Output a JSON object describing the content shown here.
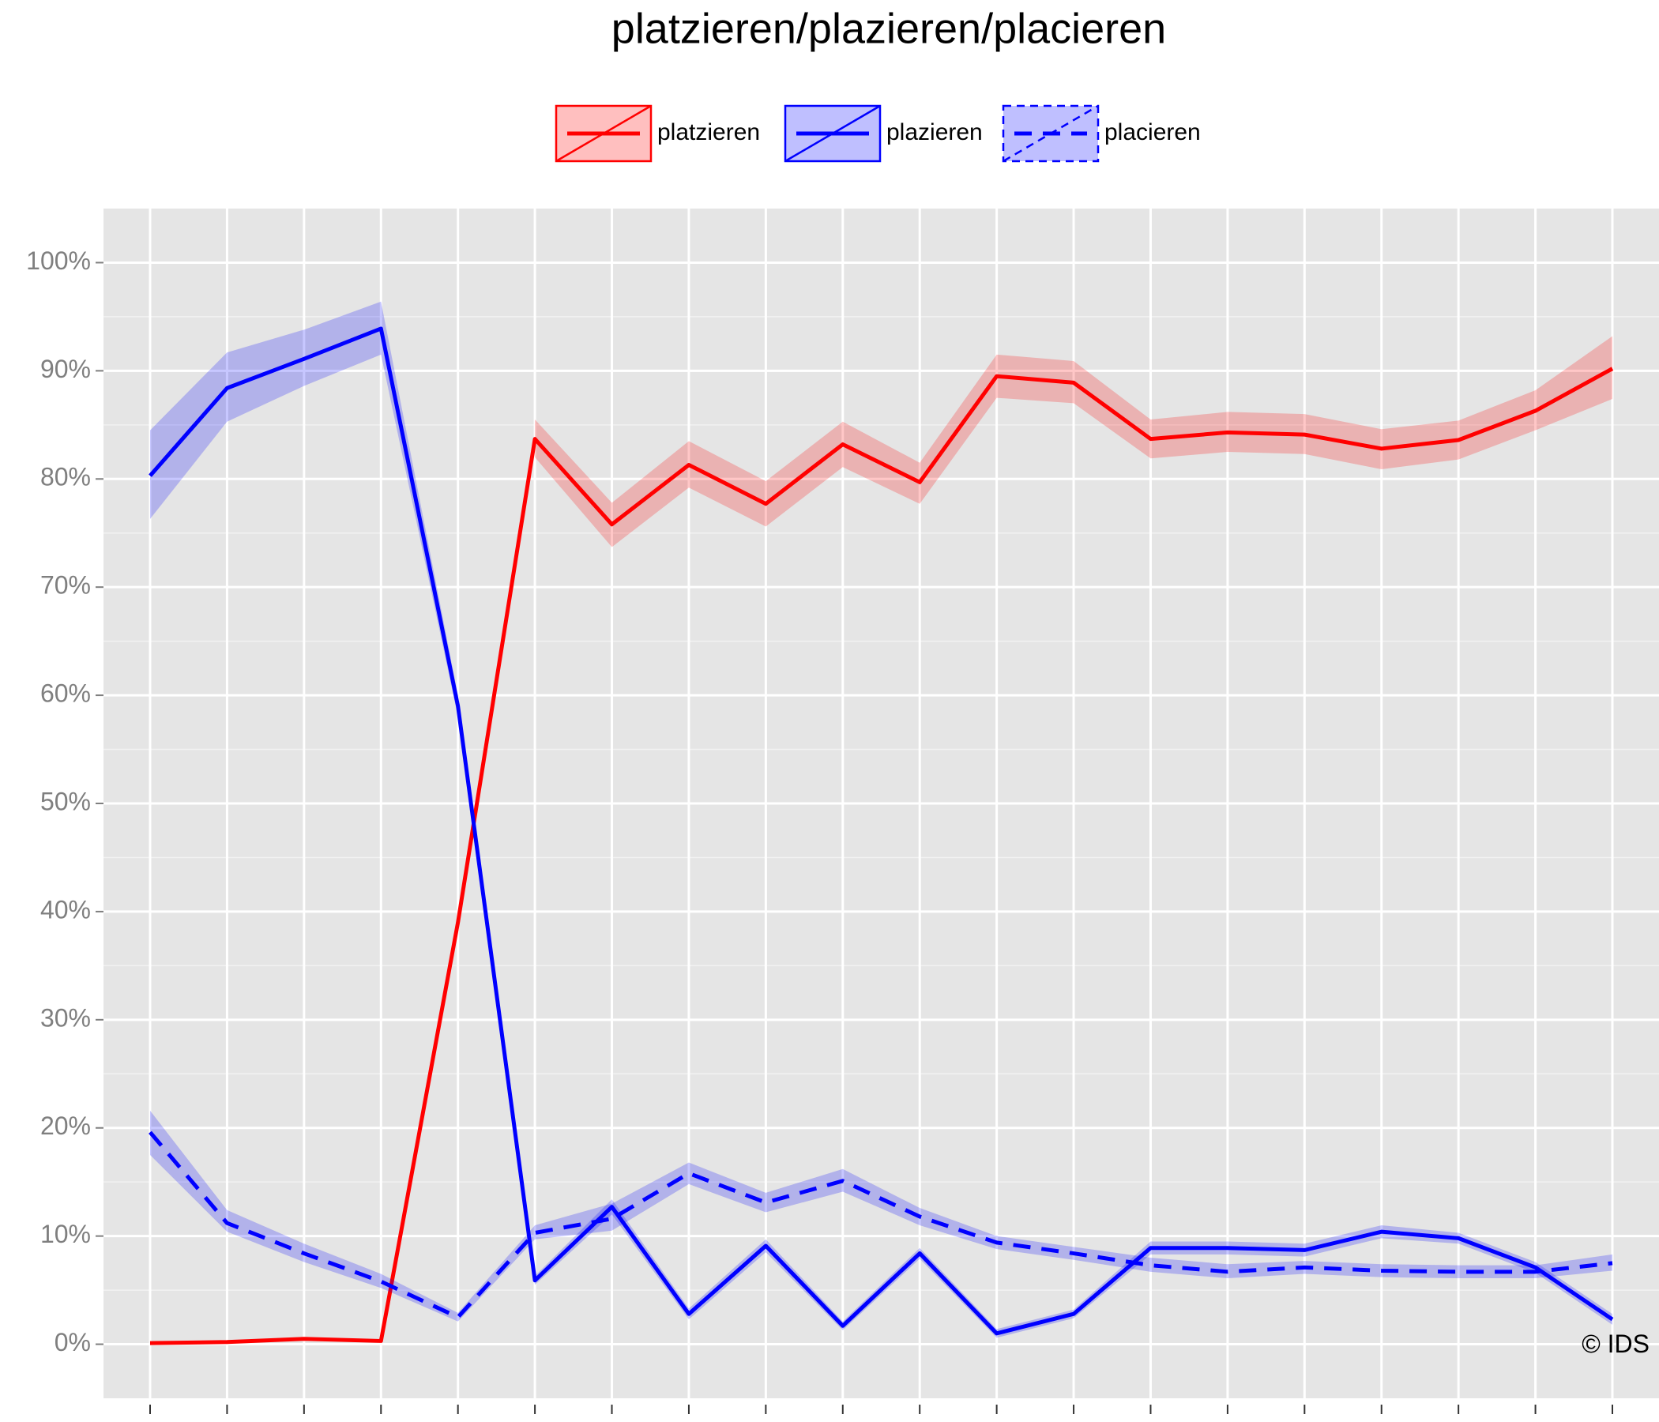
{
  "chart_data": {
    "type": "line",
    "title": "platzieren/plazieren/placieren",
    "categories": [
      null,
      null,
      null,
      null,
      null,
      null,
      null,
      null,
      null,
      null,
      null,
      null,
      null,
      null,
      null,
      null,
      null,
      null,
      null,
      null
    ],
    "series": [
      {
        "name": "platzieren",
        "color": "#ff0000",
        "linestyle": "solid",
        "values": [
          0.1,
          0.2,
          0.5,
          0.3,
          39,
          83.7,
          75.8,
          81.3,
          77.7,
          83.2,
          79.7,
          89.5,
          88.9,
          83.7,
          84.3,
          84.1,
          82.8,
          83.6,
          86.3,
          90.2
        ],
        "upper": [
          null,
          null,
          null,
          null,
          null,
          85.5,
          77.8,
          83.5,
          79.8,
          85.3,
          81.5,
          91.5,
          90.9,
          85.5,
          86.2,
          86.0,
          84.6,
          85.4,
          88.2,
          93.2
        ],
        "lower": [
          null,
          null,
          null,
          null,
          null,
          82,
          73.7,
          79.2,
          75.6,
          81.1,
          77.7,
          87.5,
          87.0,
          81.9,
          82.5,
          82.3,
          80.9,
          81.8,
          84.5,
          87.4
        ]
      },
      {
        "name": "plazieren",
        "color": "#0000ff",
        "linestyle": "solid",
        "values": [
          80.3,
          88.4,
          91.1,
          93.9,
          59,
          5.9,
          12.7,
          2.8,
          9.1,
          1.7,
          8.4,
          1.0,
          2.8,
          8.9,
          8.9,
          8.7,
          10.4,
          9.8,
          7.1,
          2.3
        ],
        "upper": [
          84.5,
          91.7,
          93.8,
          96.4,
          60,
          6.3,
          13.4,
          3.3,
          9.7,
          2.1,
          8.9,
          1.4,
          3.2,
          9.5,
          9.5,
          9.3,
          11.0,
          10.3,
          7.6,
          2.8
        ],
        "lower": [
          76.3,
          85.3,
          88.6,
          91.5,
          58,
          5.5,
          12.0,
          2.3,
          8.5,
          1.3,
          7.9,
          0.6,
          2.4,
          8.3,
          8.3,
          8.1,
          9.8,
          9.3,
          6.6,
          1.8
        ]
      },
      {
        "name": "placieren",
        "color": "#0000ff",
        "linestyle": "dashed",
        "values": [
          19.6,
          11.2,
          8.4,
          5.8,
          2.5,
          10.3,
          11.6,
          15.8,
          13.1,
          15.1,
          11.8,
          9.4,
          8.4,
          7.3,
          6.7,
          7.1,
          6.8,
          6.7,
          6.7,
          7.5
        ],
        "upper": [
          21.6,
          12.4,
          9.3,
          6.5,
          2.9,
          11.0,
          13.0,
          16.8,
          14.0,
          16.2,
          12.6,
          10.0,
          9.0,
          8.0,
          7.4,
          7.7,
          7.4,
          7.3,
          7.3,
          8.3
        ],
        "lower": [
          17.5,
          10.4,
          7.6,
          5.2,
          2.1,
          9.7,
          10.5,
          14.8,
          12.2,
          14.1,
          11.0,
          8.8,
          7.8,
          6.7,
          6.1,
          6.5,
          6.2,
          6.1,
          6.1,
          6.8
        ]
      }
    ],
    "ylim": [
      -5,
      105
    ],
    "yticks": [
      {
        "value": 0,
        "label": "0%"
      },
      {
        "value": 10,
        "label": "10%"
      },
      {
        "value": 20,
        "label": "20%"
      },
      {
        "value": 30,
        "label": "30%"
      },
      {
        "value": 40,
        "label": "40%"
      },
      {
        "value": 50,
        "label": "50%"
      },
      {
        "value": 60,
        "label": "60%"
      },
      {
        "value": 70,
        "label": "70%"
      },
      {
        "value": 80,
        "label": "80%"
      },
      {
        "value": 90,
        "label": "90%"
      },
      {
        "value": 100,
        "label": "100%"
      }
    ],
    "grid": true,
    "legend": "top",
    "annotation": "© IDS"
  }
}
